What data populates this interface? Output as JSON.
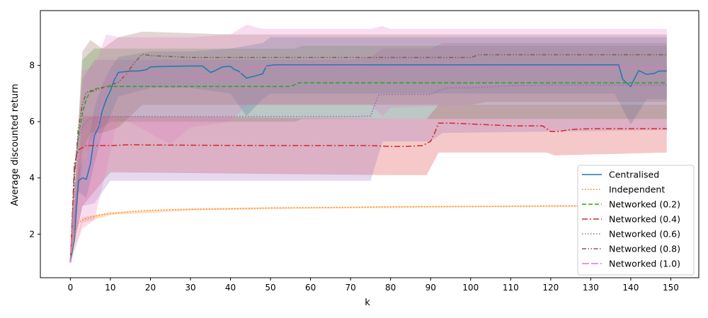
{
  "chart_data": {
    "type": "line",
    "title": "",
    "xlabel": "k",
    "ylabel": "Average discounted return",
    "xlim": [
      -7.5,
      157
    ],
    "ylim": [
      0.45,
      9.95
    ],
    "xticks": [
      0,
      10,
      20,
      30,
      40,
      50,
      60,
      70,
      80,
      90,
      100,
      110,
      120,
      130,
      140,
      150
    ],
    "yticks": [
      2,
      4,
      6,
      8
    ],
    "grid": false,
    "legend_position": "lower right",
    "series": [
      {
        "name": "Centralised",
        "color": "#1f77b4",
        "dash": "solid",
        "points": [
          [
            0,
            1
          ],
          [
            1,
            1.8
          ],
          [
            2,
            3.9
          ],
          [
            3,
            4.0
          ],
          [
            4,
            3.95
          ],
          [
            5,
            4.5
          ],
          [
            6,
            5.5
          ],
          [
            7,
            5.8
          ],
          [
            8,
            6.4
          ],
          [
            9,
            6.8
          ],
          [
            10,
            7.1
          ],
          [
            11,
            7.5
          ],
          [
            12,
            7.75
          ],
          [
            15,
            7.8
          ],
          [
            17,
            7.8
          ],
          [
            19,
            7.85
          ],
          [
            20,
            7.95
          ],
          [
            25,
            7.97
          ],
          [
            30,
            7.98
          ],
          [
            33,
            7.98
          ],
          [
            35,
            7.75
          ],
          [
            36,
            7.8
          ],
          [
            38,
            7.95
          ],
          [
            40,
            7.97
          ],
          [
            41,
            7.85
          ],
          [
            42,
            7.8
          ],
          [
            44,
            7.55
          ],
          [
            46,
            7.62
          ],
          [
            48,
            7.7
          ],
          [
            49,
            7.98
          ],
          [
            51,
            8.02
          ],
          [
            55,
            8.02
          ],
          [
            100,
            8.02
          ],
          [
            137,
            8.02
          ],
          [
            138,
            7.5
          ],
          [
            140,
            7.25
          ],
          [
            141,
            7.55
          ],
          [
            142,
            7.82
          ],
          [
            144,
            7.68
          ],
          [
            146,
            7.72
          ],
          [
            147,
            7.8
          ],
          [
            149,
            7.8
          ]
        ],
        "band": [
          [
            0,
            1,
            1
          ],
          [
            2,
            3.5,
            4.3
          ],
          [
            4,
            3.3,
            4.8
          ],
          [
            6,
            4.5,
            6.5
          ],
          [
            8,
            5.6,
            7.3
          ],
          [
            10,
            6.2,
            7.9
          ],
          [
            12,
            6.9,
            8.3
          ],
          [
            20,
            7.2,
            8.5
          ],
          [
            30,
            7.2,
            8.5
          ],
          [
            40,
            7.0,
            8.6
          ],
          [
            44,
            6.2,
            8.7
          ],
          [
            48,
            6.8,
            8.8
          ],
          [
            50,
            7.0,
            9.0
          ],
          [
            100,
            7.0,
            9.0
          ],
          [
            136,
            7.0,
            9.0
          ],
          [
            140,
            5.9,
            9.0
          ],
          [
            144,
            6.8,
            9.0
          ],
          [
            149,
            6.8,
            9.0
          ]
        ]
      },
      {
        "name": "Independent",
        "color": "#ff7f0e",
        "dash": "dotted",
        "points": [
          [
            0,
            1
          ],
          [
            1,
            2.0
          ],
          [
            2,
            2.4
          ],
          [
            3,
            2.5
          ],
          [
            5,
            2.6
          ],
          [
            8,
            2.7
          ],
          [
            10,
            2.73
          ],
          [
            15,
            2.8
          ],
          [
            20,
            2.85
          ],
          [
            30,
            2.88
          ],
          [
            40,
            2.9
          ],
          [
            50,
            2.93
          ],
          [
            60,
            2.94
          ],
          [
            70,
            2.95
          ],
          [
            80,
            2.97
          ],
          [
            90,
            2.98
          ],
          [
            100,
            2.98
          ],
          [
            110,
            2.99
          ],
          [
            120,
            3.0
          ],
          [
            130,
            3.0
          ],
          [
            140,
            3.01
          ],
          [
            149,
            3.02
          ]
        ],
        "band": [
          [
            0,
            1,
            1
          ],
          [
            3,
            2.4,
            2.6
          ],
          [
            10,
            2.68,
            2.78
          ],
          [
            30,
            2.84,
            2.92
          ],
          [
            60,
            2.91,
            2.97
          ],
          [
            100,
            2.95,
            3.01
          ],
          [
            149,
            2.99,
            3.05
          ]
        ]
      },
      {
        "name": "Networked (0.2)",
        "color": "#2ca02c",
        "dash": "dashed",
        "points": [
          [
            0,
            1
          ],
          [
            1,
            4.2
          ],
          [
            2,
            5.5
          ],
          [
            3,
            6.3
          ],
          [
            4,
            6.8
          ],
          [
            5,
            7.1
          ],
          [
            7,
            7.2
          ],
          [
            10,
            7.25
          ],
          [
            20,
            7.25
          ],
          [
            50,
            7.25
          ],
          [
            55,
            7.25
          ],
          [
            57,
            7.38
          ],
          [
            60,
            7.38
          ],
          [
            100,
            7.38
          ],
          [
            149,
            7.38
          ]
        ],
        "band": [
          [
            0,
            1,
            1
          ],
          [
            3,
            4.5,
            8.2
          ],
          [
            6,
            5.6,
            8.6
          ],
          [
            10,
            6.0,
            8.6
          ],
          [
            40,
            6.0,
            8.6
          ],
          [
            56,
            6.0,
            8.6
          ],
          [
            58,
            6.1,
            8.7
          ],
          [
            149,
            6.1,
            8.7
          ]
        ]
      },
      {
        "name": "Networked (0.4)",
        "color": "#d62728",
        "dash": "dashdot",
        "points": [
          [
            0,
            1
          ],
          [
            1,
            4.5
          ],
          [
            2,
            5.0
          ],
          [
            4,
            5.15
          ],
          [
            10,
            5.15
          ],
          [
            15,
            5.18
          ],
          [
            20,
            5.17
          ],
          [
            50,
            5.15
          ],
          [
            75,
            5.15
          ],
          [
            80,
            5.12
          ],
          [
            84,
            5.12
          ],
          [
            88,
            5.15
          ],
          [
            90,
            5.3
          ],
          [
            91,
            5.6
          ],
          [
            92,
            5.95
          ],
          [
            95,
            5.95
          ],
          [
            100,
            5.92
          ],
          [
            110,
            5.85
          ],
          [
            118,
            5.85
          ],
          [
            120,
            5.65
          ],
          [
            122,
            5.65
          ],
          [
            125,
            5.72
          ],
          [
            130,
            5.75
          ],
          [
            140,
            5.75
          ],
          [
            149,
            5.75
          ]
        ],
        "band": [
          [
            0,
            1,
            1
          ],
          [
            3,
            3.0,
            6.2
          ],
          [
            10,
            4.2,
            6.2
          ],
          [
            80,
            4.1,
            6.1
          ],
          [
            89,
            4.1,
            6.1
          ],
          [
            92,
            4.9,
            6.6
          ],
          [
            119,
            4.9,
            6.6
          ],
          [
            121,
            4.8,
            6.6
          ],
          [
            149,
            4.9,
            6.6
          ]
        ]
      },
      {
        "name": "Networked (0.6)",
        "color": "#9467bd",
        "dash": "dotted",
        "points": [
          [
            0,
            1
          ],
          [
            1,
            4.0
          ],
          [
            2,
            5.4
          ],
          [
            3,
            5.8
          ],
          [
            4,
            6.0
          ],
          [
            5,
            6.12
          ],
          [
            10,
            6.18
          ],
          [
            20,
            6.18
          ],
          [
            50,
            6.18
          ],
          [
            70,
            6.18
          ],
          [
            75,
            6.2
          ],
          [
            77,
            6.95
          ],
          [
            80,
            6.97
          ],
          [
            90,
            6.97
          ],
          [
            92,
            7.1
          ],
          [
            94,
            7.2
          ],
          [
            100,
            7.2
          ],
          [
            110,
            7.28
          ],
          [
            120,
            7.3
          ],
          [
            149,
            7.3
          ]
        ],
        "band": [
          [
            0,
            1,
            1
          ],
          [
            3,
            3.0,
            7.5
          ],
          [
            6,
            3.1,
            8.2
          ],
          [
            10,
            3.9,
            8.2
          ],
          [
            70,
            3.9,
            8.2
          ],
          [
            75,
            3.9,
            8.3
          ],
          [
            78,
            5.3,
            8.6
          ],
          [
            90,
            5.3,
            8.6
          ],
          [
            93,
            5.6,
            8.8
          ],
          [
            149,
            5.7,
            8.8
          ]
        ]
      },
      {
        "name": "Networked (0.8)",
        "color": "#8c564b",
        "dash": "dashdotdot",
        "points": [
          [
            0,
            1
          ],
          [
            1,
            4.0
          ],
          [
            2,
            5.8
          ],
          [
            3,
            6.6
          ],
          [
            4,
            7.05
          ],
          [
            6,
            7.1
          ],
          [
            8,
            7.2
          ],
          [
            10,
            7.3
          ],
          [
            12,
            7.4
          ],
          [
            14,
            7.7
          ],
          [
            16,
            8.1
          ],
          [
            18,
            8.4
          ],
          [
            20,
            8.35
          ],
          [
            25,
            8.32
          ],
          [
            30,
            8.28
          ],
          [
            40,
            8.28
          ],
          [
            60,
            8.28
          ],
          [
            80,
            8.28
          ],
          [
            100,
            8.28
          ],
          [
            102,
            8.38
          ],
          [
            110,
            8.38
          ],
          [
            120,
            8.38
          ],
          [
            149,
            8.38
          ]
        ],
        "band": [
          [
            0,
            1,
            1
          ],
          [
            3,
            5.0,
            8.5
          ],
          [
            5,
            5.6,
            8.9
          ],
          [
            8,
            5.6,
            8.6
          ],
          [
            12,
            5.8,
            9.0
          ],
          [
            18,
            6.6,
            9.2
          ],
          [
            40,
            6.6,
            9.1
          ],
          [
            100,
            6.6,
            9.1
          ],
          [
            104,
            6.7,
            9.1
          ],
          [
            149,
            6.7,
            9.1
          ]
        ]
      },
      {
        "name": "Networked (1.0)",
        "color": "#e377c2",
        "dash": "longdash",
        "points": [
          [
            0,
            1
          ],
          [
            1,
            3.5
          ],
          [
            2,
            4.6
          ],
          [
            3,
            5.0
          ],
          [
            5,
            5.3
          ],
          [
            7,
            5.9
          ],
          [
            8,
            6.8
          ],
          [
            9,
            7.5
          ],
          [
            10,
            7.6
          ],
          [
            15,
            7.65
          ],
          [
            20,
            7.7
          ],
          [
            25,
            7.65
          ],
          [
            28,
            7.6
          ],
          [
            30,
            7.6
          ],
          [
            35,
            7.6
          ],
          [
            40,
            7.55
          ],
          [
            42,
            7.7
          ],
          [
            45,
            7.95
          ],
          [
            50,
            7.95
          ],
          [
            60,
            7.95
          ],
          [
            75,
            7.95
          ],
          [
            78,
            7.82
          ],
          [
            80,
            7.92
          ],
          [
            100,
            7.92
          ],
          [
            140,
            7.92
          ],
          [
            149,
            7.92
          ]
        ],
        "band": [
          [
            0,
            1,
            1
          ],
          [
            3,
            2.2,
            7.8
          ],
          [
            6,
            2.5,
            8.0
          ],
          [
            9,
            4.3,
            9.1
          ],
          [
            12,
            6.2,
            9.0
          ],
          [
            25,
            5.2,
            9.0
          ],
          [
            30,
            5.8,
            9.0
          ],
          [
            40,
            6.0,
            9.1
          ],
          [
            44,
            6.6,
            9.45
          ],
          [
            48,
            6.6,
            9.3
          ],
          [
            60,
            6.6,
            9.3
          ],
          [
            75,
            6.6,
            9.3
          ],
          [
            78,
            6.2,
            9.4
          ],
          [
            80,
            6.5,
            9.3
          ],
          [
            100,
            6.6,
            9.3
          ],
          [
            149,
            6.6,
            9.3
          ]
        ]
      }
    ]
  }
}
